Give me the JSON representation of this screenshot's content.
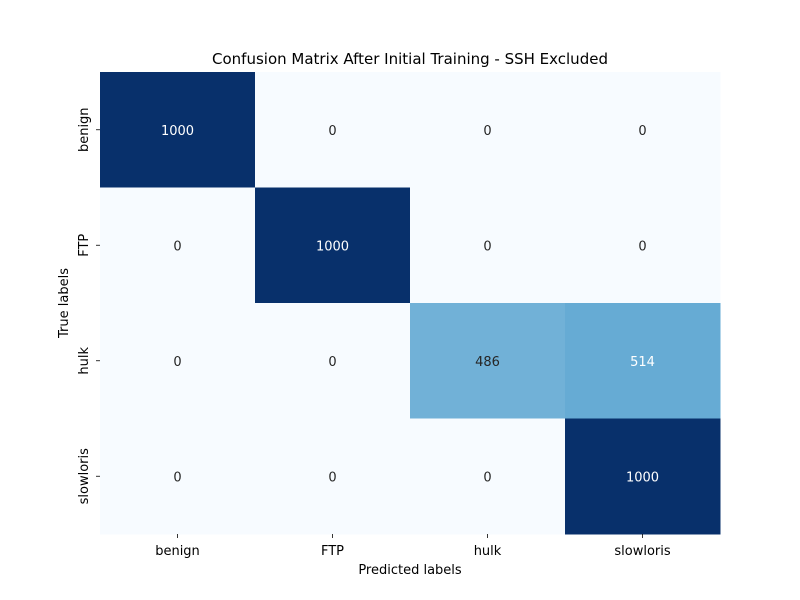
{
  "chart_data": {
    "type": "heatmap",
    "title": "Confusion Matrix After Initial Training - SSH Excluded",
    "xlabel": "Predicted labels",
    "ylabel": "True labels",
    "x_categories": [
      "benign",
      "FTP",
      "hulk",
      "slowloris"
    ],
    "y_categories": [
      "benign",
      "FTP",
      "hulk",
      "slowloris"
    ],
    "values": [
      [
        1000,
        0,
        0,
        0
      ],
      [
        0,
        1000,
        0,
        0
      ],
      [
        0,
        0,
        486,
        514
      ],
      [
        0,
        0,
        0,
        1000
      ]
    ],
    "vmin": 0,
    "vmax": 1000,
    "colormap": "Blues",
    "colorbar": false,
    "annotations": true
  }
}
